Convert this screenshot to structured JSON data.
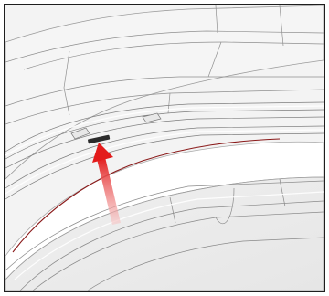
{
  "viewport": {
    "description_visible": false,
    "colors": {
      "background": "#f3f3f3",
      "face_light": "#f7f7f7",
      "face_mid": "#ececec",
      "face_dark": "#e3e3e3",
      "edge": "#9a9a9a",
      "edge_dark": "#6f6f6f",
      "highlight": "#ffffff",
      "accent_edge": "#8a1a1a",
      "arrow_top": "#e31b1b",
      "arrow_bottom": "#f7c9c9",
      "marker": "#2b2b2b"
    },
    "icons": {
      "pointer": "red-arrow-icon",
      "marker": "edge-marker-icon"
    }
  }
}
